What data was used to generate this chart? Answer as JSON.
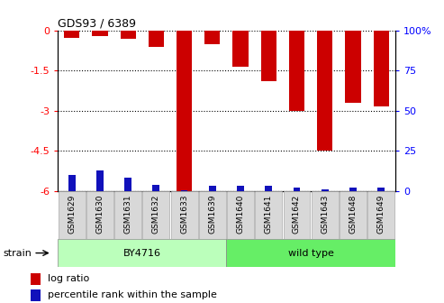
{
  "title": "GDS93 / 6389",
  "samples": [
    "GSM1629",
    "GSM1630",
    "GSM1631",
    "GSM1632",
    "GSM1633",
    "GSM1639",
    "GSM1640",
    "GSM1641",
    "GSM1642",
    "GSM1643",
    "GSM1648",
    "GSM1649"
  ],
  "log_ratio": [
    -0.28,
    -0.22,
    -0.32,
    -0.62,
    -6.0,
    -0.52,
    -1.35,
    -1.9,
    -3.0,
    -4.5,
    -2.7,
    -2.85
  ],
  "percentile_rank_pct": [
    10.0,
    13.0,
    8.0,
    4.0,
    0.5,
    3.0,
    3.0,
    3.0,
    2.0,
    1.0,
    2.0,
    2.0
  ],
  "by4716_count": 6,
  "wildtype_count": 6,
  "ylim_left": [
    -6.0,
    0.0
  ],
  "ylim_right": [
    0,
    100
  ],
  "yticks_left": [
    0,
    -1.5,
    -3.0,
    -4.5,
    -6.0
  ],
  "yticks_right": [
    0,
    25,
    50,
    75,
    100
  ],
  "bar_color": "#cc0000",
  "pct_color": "#1111bb",
  "by4716_color": "#bbffbb",
  "wildtype_color": "#66ee66",
  "grid_color": "#000000",
  "strain_label": "strain",
  "by4716_label": "BY4716",
  "wildtype_label": "wild type",
  "legend_logratio": "log ratio",
  "legend_pct": "percentile rank within the sample",
  "bar_width": 0.55,
  "pct_bar_width": 0.25
}
